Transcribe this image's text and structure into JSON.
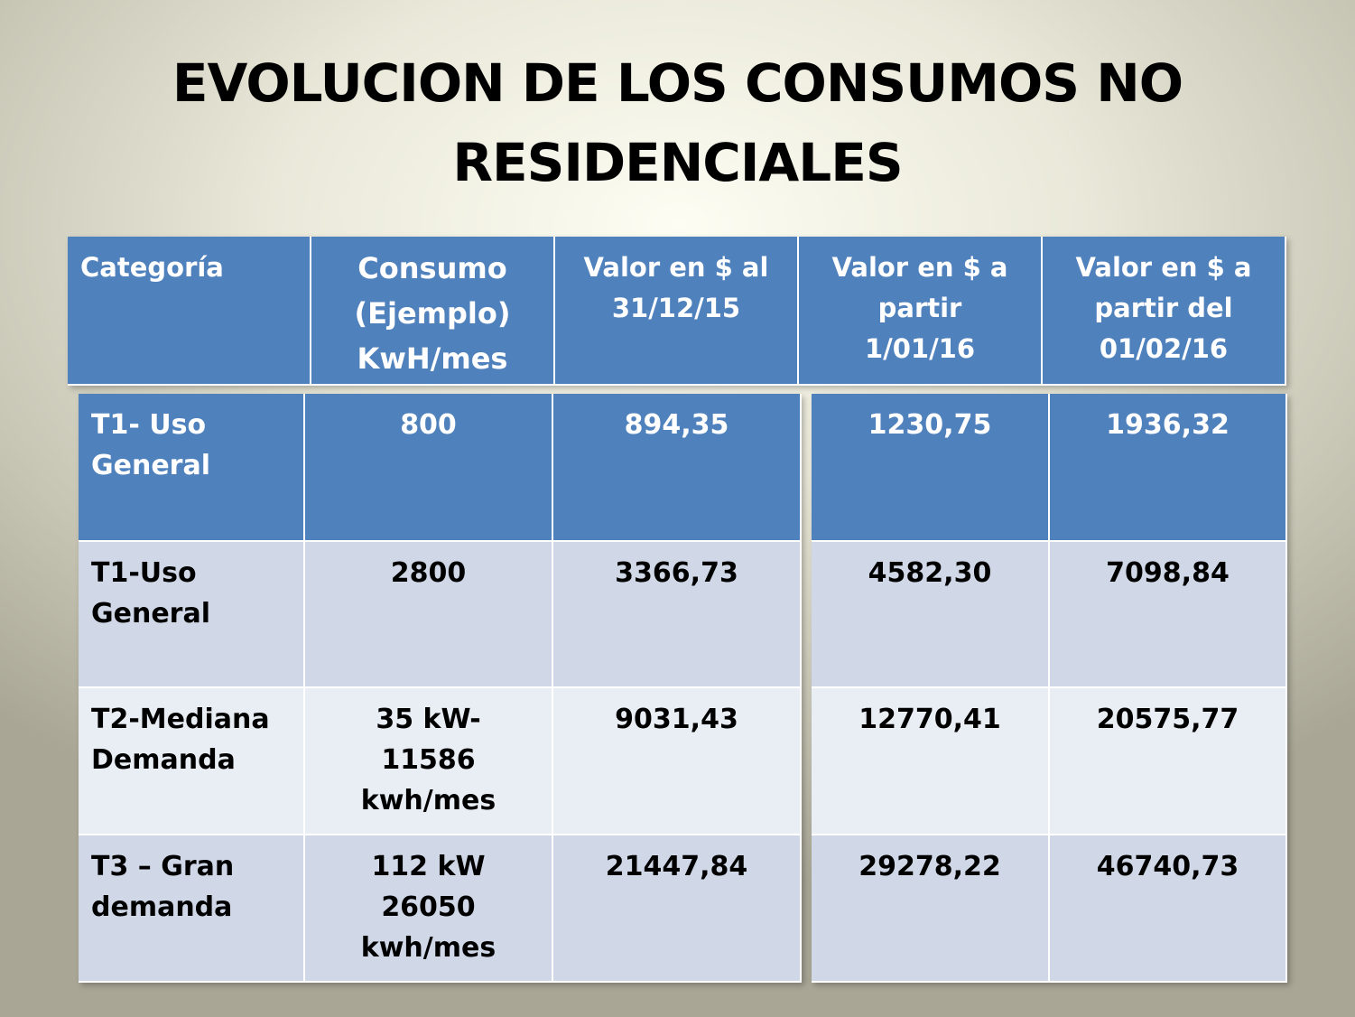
{
  "slide": {
    "title_line1": "EVOLUCION DE LOS CONSUMOS NO",
    "title_line2": "RESIDENCIALES"
  },
  "table": {
    "headers": [
      {
        "lines": [
          "Categoría"
        ]
      },
      {
        "lines": [
          "Consumo",
          "(Ejemplo)",
          "KwH/mes"
        ]
      },
      {
        "lines": [
          "Valor en $ al",
          "31/12/15"
        ]
      },
      {
        "lines": [
          "Valor en $  a",
          "partir",
          "1/01/16"
        ]
      },
      {
        "lines": [
          "Valor en $ a",
          "partir del",
          "01/02/16"
        ]
      }
    ],
    "rows": [
      {
        "categoria": [
          "T1- Uso",
          "General"
        ],
        "consumo": [
          "800"
        ],
        "v1": "894,35",
        "v2": "1230,75",
        "v3": "1936,32"
      },
      {
        "categoria": [
          "T1-Uso",
          "General"
        ],
        "consumo": [
          "2800"
        ],
        "v1": "3366,73",
        "v2": "4582,30",
        "v3": "7098,84"
      },
      {
        "categoria": [
          "T2-Mediana",
          "Demanda"
        ],
        "consumo": [
          "35 kW-",
          "11586",
          "kwh/mes"
        ],
        "v1": "9031,43",
        "v2": "12770,41",
        "v3": "20575,77"
      },
      {
        "categoria": [
          "T3 – Gran",
          "demanda"
        ],
        "consumo": [
          "112 kW",
          "26050",
          "kwh/mes"
        ],
        "v1": "21447,84",
        "v2": "29278,22",
        "v3": "46740,73"
      }
    ]
  },
  "colors": {
    "header_blue": "#4f81bd",
    "row_band_dark": "#d0d8e8",
    "row_band_light": "#e9edf4"
  }
}
